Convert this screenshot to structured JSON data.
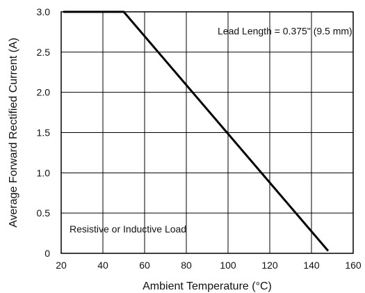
{
  "chart_data": {
    "type": "line",
    "xlabel": "Ambient Temperature (°C)",
    "ylabel": "Average Forward Rectified Current (A)",
    "xlim": [
      20,
      160
    ],
    "ylim": [
      0,
      3.0
    ],
    "x_ticks": [
      20,
      40,
      60,
      80,
      100,
      120,
      140,
      160
    ],
    "y_ticks": [
      0,
      0.5,
      1.0,
      1.5,
      2.0,
      2.5,
      3.0
    ],
    "y_tick_labels": [
      "0",
      "0.5",
      "1.0",
      "1.5",
      "2.0",
      "2.5",
      "3.0"
    ],
    "grid": true,
    "series": [
      {
        "x": [
          21,
          50,
          148
        ],
        "y": [
          3.0,
          3.0,
          0.03
        ]
      }
    ],
    "annotations": [
      {
        "text": "Lead Length = 0.375\" (9.5 mm)",
        "x": 95,
        "y": 2.72
      },
      {
        "text": "Resistive or Inductive Load",
        "x": 24,
        "y": 0.26
      }
    ],
    "line_color": "#000000",
    "grid_color": "#000000"
  }
}
